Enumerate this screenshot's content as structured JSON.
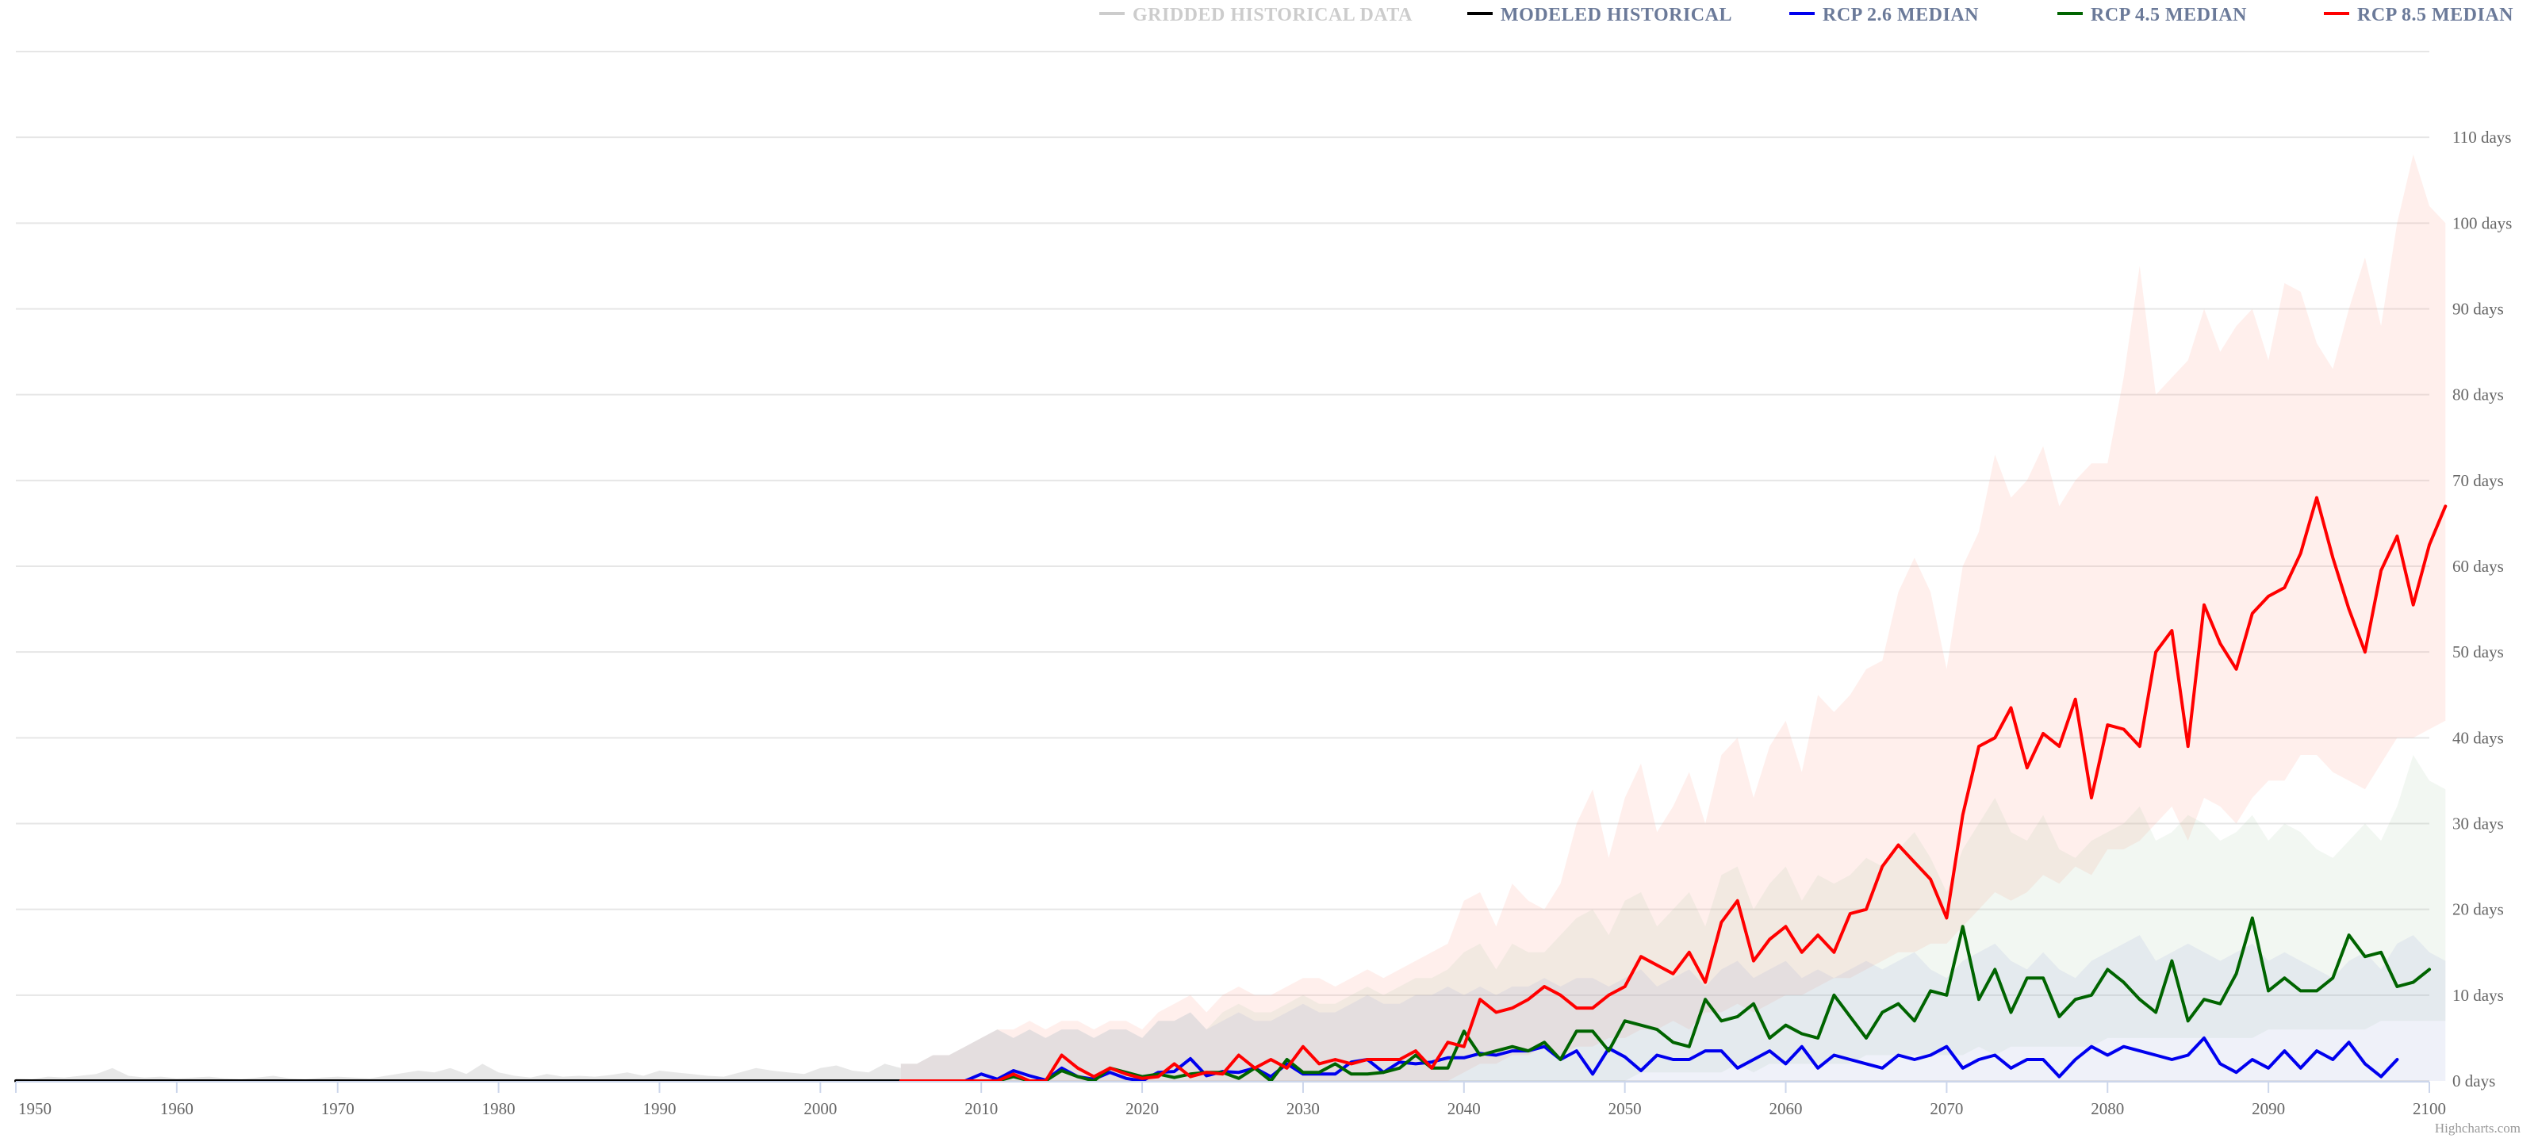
{
  "chart_data": {
    "type": "line",
    "x_range": [
      1950,
      2100
    ],
    "ylim": [
      0,
      120
    ],
    "y_unit": "days",
    "grid": true,
    "legend_position": "top-right",
    "x_ticks": [
      "1950",
      "1960",
      "1970",
      "1980",
      "1990",
      "2000",
      "2010",
      "2020",
      "2030",
      "2040",
      "2050",
      "2060",
      "2070",
      "2080",
      "2090",
      "2100"
    ],
    "y_ticks": [
      "0 days",
      "10 days",
      "20 days",
      "30 days",
      "40 days",
      "50 days",
      "60 days",
      "70 days",
      "80 days",
      "90 days",
      "100 days",
      "110 days"
    ],
    "legend": [
      {
        "name": "GRIDDED HISTORICAL DATA",
        "color": "#cccccc",
        "text_color": "#cccccc",
        "inactive": true
      },
      {
        "name": "MODELED HISTORICAL",
        "color": "#000000",
        "text_color": "#6b7a99"
      },
      {
        "name": "RCP 2.6 MEDIAN",
        "color": "#0000ee",
        "text_color": "#6b7a99"
      },
      {
        "name": "RCP 4.5 MEDIAN",
        "color": "#006400",
        "text_color": "#6b7a99"
      },
      {
        "name": "RCP 8.5 MEDIAN",
        "color": "#ff0000",
        "text_color": "#6b7a99"
      }
    ],
    "series": [
      {
        "name": "MODELED HISTORICAL",
        "color": "#000000",
        "x": [
          1950,
          2005
        ],
        "values": [
          0,
          0
        ]
      },
      {
        "name": "RCP 2.6 MEDIAN",
        "color": "#0000ee",
        "x_start": 2005,
        "values": [
          0,
          0,
          0,
          0,
          0,
          0.8,
          0.2,
          1.2,
          0.6,
          0.1,
          1.5,
          0.5,
          0.2,
          1.0,
          0.3,
          0,
          1.0,
          1.1,
          2.6,
          0.6,
          1.1,
          1.0,
          1.5,
          0.5,
          2.0,
          0.8,
          0.8,
          0.8,
          2.2,
          2.5,
          1.0,
          2.2,
          2.0,
          2.2,
          2.7,
          2.7,
          3.2,
          3.0,
          3.5,
          3.5,
          4.0,
          2.5,
          3.5,
          0.8,
          3.8,
          2.8,
          1.2,
          3.0,
          2.5,
          2.5,
          3.5,
          3.5,
          1.5,
          2.5,
          3.5,
          2.0,
          4.0,
          1.5,
          3.0,
          2.5,
          2.0,
          1.5,
          3.0,
          2.5,
          3.0,
          4.0,
          1.5,
          2.5,
          3.0,
          1.5,
          2.5,
          2.5,
          0.5,
          2.5,
          4.0,
          3.0,
          4.0,
          3.5,
          3.0,
          2.5,
          3.0,
          5.0,
          2.0,
          1.0,
          2.5,
          1.5,
          3.5,
          1.5,
          3.5,
          2.5,
          4.5,
          2.0,
          0.5,
          2.5
        ]
      },
      {
        "name": "RCP 4.5 MEDIAN",
        "color": "#006400",
        "x_start": 2005,
        "values": [
          0,
          0,
          0,
          0,
          0,
          0,
          0,
          0.5,
          0,
          0,
          1.2,
          0.5,
          0,
          1.5,
          1.0,
          0.5,
          0.8,
          0.4,
          0.8,
          1.0,
          1.0,
          0.3,
          1.5,
          0,
          2.5,
          1.0,
          1.0,
          2.0,
          0.8,
          0.8,
          1.0,
          1.5,
          3.0,
          1.5,
          1.5,
          5.8,
          3.0,
          3.5,
          4.0,
          3.5,
          4.5,
          2.5,
          5.8,
          5.8,
          3.5,
          7.0,
          6.5,
          6.0,
          4.5,
          4.0,
          9.5,
          7.0,
          7.5,
          9.0,
          5.0,
          6.5,
          5.5,
          5.0,
          10.0,
          7.5,
          5.0,
          8.0,
          9.0,
          7.0,
          10.5,
          10.0,
          18.0,
          9.5,
          13.0,
          8.0,
          12.0,
          12.0,
          7.5,
          9.5,
          10.0,
          13.0,
          11.5,
          9.5,
          8.0,
          14.0,
          7.0,
          9.5,
          9.0,
          12.5,
          19.0,
          10.5,
          12.0,
          10.5,
          10.5,
          12.0,
          17.0,
          14.5,
          15.0,
          11.0,
          11.5,
          13.0
        ]
      },
      {
        "name": "RCP 8.5 MEDIAN",
        "color": "#ff0000",
        "x_start": 2005,
        "values": [
          0,
          0,
          0,
          0,
          0,
          0,
          0,
          0.8,
          0,
          0,
          3.0,
          1.5,
          0.5,
          1.5,
          0.8,
          0.3,
          0.5,
          2.0,
          0.5,
          1.0,
          0.8,
          3.0,
          1.5,
          2.5,
          1.5,
          4.0,
          2.0,
          2.5,
          2.0,
          2.5,
          2.5,
          2.5,
          3.5,
          1.5,
          4.5,
          4.0,
          9.5,
          8.0,
          8.5,
          9.5,
          11.0,
          10.0,
          8.5,
          8.5,
          10.0,
          11.0,
          14.5,
          13.5,
          12.5,
          15.0,
          11.5,
          18.5,
          21.0,
          14.0,
          16.5,
          18.0,
          15.0,
          17.0,
          15.0,
          19.5,
          20.0,
          25.0,
          27.5,
          25.5,
          23.5,
          19.0,
          31.0,
          39.0,
          40.0,
          43.5,
          36.5,
          40.5,
          39.0,
          44.5,
          33.0,
          41.5,
          41.0,
          39.0,
          50.0,
          52.5,
          39.0,
          55.5,
          51.0,
          48.0,
          54.5,
          56.5,
          57.5,
          61.5,
          68.0,
          61.0,
          55.0,
          50.0,
          59.5,
          63.5,
          55.5,
          62.5,
          67.0
        ]
      }
    ],
    "ranges": [
      {
        "name": "RCP 8.5 range",
        "color": "#ff9e8a",
        "opacity": 0.16,
        "x_start": 2005,
        "low": [
          0,
          0,
          0,
          0,
          0,
          0,
          0,
          0,
          0,
          0,
          0,
          0,
          0,
          0,
          0,
          0,
          0,
          0,
          0,
          0,
          0,
          0,
          0,
          0,
          0,
          0,
          0,
          0,
          0,
          0,
          0,
          0,
          0,
          0,
          0,
          1,
          2,
          2,
          3,
          3,
          4,
          3,
          4,
          4,
          5,
          5,
          6,
          6,
          7,
          6,
          8,
          8,
          9,
          8,
          9,
          10,
          10,
          11,
          12,
          12,
          13,
          14,
          15,
          15,
          16,
          16,
          18,
          20,
          22,
          21,
          22,
          24,
          23,
          25,
          24,
          27,
          27,
          28,
          30,
          32,
          28,
          33,
          32,
          30,
          33,
          35,
          35,
          38,
          38,
          36,
          35,
          34,
          37,
          40,
          40,
          41,
          42
        ],
        "high": [
          2,
          2,
          3,
          3,
          4,
          5,
          6,
          6,
          7,
          6,
          7,
          7,
          6,
          7,
          7,
          6,
          8,
          9,
          10,
          8,
          10,
          11,
          10,
          10,
          11,
          12,
          12,
          11,
          12,
          13,
          12,
          13,
          14,
          15,
          16,
          21,
          22,
          18,
          23,
          21,
          20,
          23,
          30,
          34,
          26,
          33,
          37,
          29,
          32,
          36,
          30,
          38,
          40,
          33,
          39,
          42,
          36,
          45,
          43,
          45,
          48,
          49,
          57,
          61,
          57,
          48,
          60,
          64,
          73,
          68,
          70,
          74,
          67,
          70,
          72,
          72,
          82,
          95,
          80,
          82,
          84,
          90,
          85,
          88,
          90,
          84,
          93,
          92,
          86,
          83,
          90,
          96,
          88,
          100,
          108,
          102,
          100
        ]
      },
      {
        "name": "RCP 4.5 range",
        "color": "#a0c4a0",
        "opacity": 0.14,
        "x_start": 2005,
        "low": [
          0,
          0,
          0,
          0,
          0,
          0,
          0,
          0,
          0,
          0,
          0,
          0,
          0,
          0,
          0,
          0,
          0,
          0,
          0,
          0,
          0,
          0,
          0,
          0,
          0,
          0,
          0,
          0,
          0,
          0,
          0,
          0,
          0,
          0,
          0,
          0,
          0,
          0,
          0,
          0,
          0,
          0,
          0,
          0,
          0,
          0,
          1,
          1,
          1,
          1,
          1,
          1,
          2,
          1,
          2,
          2,
          2,
          2,
          2,
          2,
          3,
          3,
          3,
          3,
          3,
          3,
          3,
          4,
          3,
          4,
          4,
          4,
          4,
          4,
          4,
          5,
          5,
          5,
          5,
          5,
          5,
          5,
          5,
          5,
          5,
          6,
          6,
          6,
          6,
          6,
          6,
          6,
          7,
          7,
          7,
          7,
          7
        ],
        "high": [
          2,
          2,
          3,
          3,
          4,
          5,
          6,
          5,
          6,
          5,
          6,
          6,
          5,
          6,
          6,
          5,
          7,
          7,
          8,
          6,
          8,
          9,
          8,
          8,
          9,
          10,
          9,
          9,
          10,
          11,
          10,
          11,
          12,
          12,
          13,
          15,
          16,
          13,
          16,
          15,
          15,
          17,
          19,
          20,
          17,
          21,
          22,
          18,
          20,
          22,
          18,
          24,
          25,
          20,
          23,
          25,
          21,
          24,
          23,
          24,
          26,
          25,
          27,
          29,
          26,
          22,
          27,
          30,
          33,
          29,
          28,
          31,
          27,
          26,
          28,
          29,
          30,
          32,
          28,
          29,
          31,
          30,
          28,
          29,
          31,
          28,
          30,
          29,
          27,
          26,
          28,
          30,
          28,
          32,
          38,
          35,
          34
        ]
      },
      {
        "name": "RCP 2.6 range",
        "color": "#9ea8d8",
        "opacity": 0.16,
        "x_start": 2005,
        "low": [
          0,
          0,
          0,
          0,
          0,
          0,
          0,
          0,
          0,
          0,
          0,
          0,
          0,
          0,
          0,
          0,
          0,
          0,
          0,
          0,
          0,
          0,
          0,
          0,
          0,
          0,
          0,
          0,
          0,
          0,
          0,
          0,
          0,
          0,
          0,
          0,
          0,
          0,
          0,
          0,
          0,
          0,
          0,
          0,
          0,
          0,
          0,
          0,
          0,
          0,
          0,
          0,
          0,
          0,
          0,
          0,
          0,
          0,
          0,
          0,
          0,
          0,
          0,
          0,
          0,
          0,
          0,
          0,
          0,
          0,
          0,
          0,
          0,
          0,
          0,
          0,
          0,
          0,
          0,
          0,
          0,
          0,
          0,
          0,
          0,
          0,
          0,
          0,
          0,
          0,
          0,
          0,
          0,
          0,
          0,
          0,
          0
        ],
        "high": [
          2,
          2,
          3,
          3,
          4,
          5,
          6,
          5,
          6,
          5,
          6,
          6,
          5,
          6,
          6,
          5,
          7,
          7,
          8,
          6,
          7,
          8,
          7,
          7,
          8,
          9,
          8,
          8,
          9,
          10,
          9,
          9,
          10,
          10,
          11,
          10,
          11,
          10,
          11,
          11,
          12,
          11,
          12,
          12,
          11,
          12,
          13,
          11,
          12,
          13,
          11,
          13,
          14,
          12,
          13,
          14,
          12,
          13,
          12,
          13,
          14,
          13,
          14,
          15,
          13,
          12,
          14,
          15,
          16,
          14,
          13,
          15,
          13,
          12,
          14,
          15,
          16,
          17,
          14,
          15,
          16,
          15,
          14,
          15,
          16,
          14,
          15,
          14,
          13,
          12,
          14,
          15,
          13,
          16,
          17,
          15,
          14
        ]
      },
      {
        "name": "Gridded historical",
        "color": "#bbbbbb",
        "opacity": 0.35,
        "x_start": 1950,
        "low": [
          0,
          0,
          0,
          0,
          0,
          0,
          0,
          0,
          0,
          0,
          0,
          0,
          0,
          0,
          0,
          0,
          0,
          0,
          0,
          0,
          0,
          0,
          0,
          0,
          0,
          0,
          0,
          0,
          0,
          0,
          0,
          0,
          0,
          0,
          0,
          0,
          0,
          0,
          0,
          0,
          0,
          0,
          0,
          0,
          0,
          0,
          0,
          0,
          0,
          0,
          0,
          0,
          0,
          0,
          0,
          0
        ],
        "high": [
          0.3,
          0.2,
          0.5,
          0.4,
          0.6,
          0.8,
          1.5,
          0.6,
          0.4,
          0.5,
          0.3,
          0.4,
          0.5,
          0.3,
          0.2,
          0.4,
          0.6,
          0.3,
          0.2,
          0.4,
          0.5,
          0.4,
          0.3,
          0.6,
          0.9,
          1.2,
          1.0,
          1.5,
          0.8,
          2.0,
          1.0,
          0.6,
          0.4,
          0.8,
          0.5,
          0.6,
          0.5,
          0.7,
          1.0,
          0.6,
          1.2,
          1.0,
          0.8,
          0.6,
          0.5,
          1.0,
          1.5,
          1.2,
          1.0,
          0.8,
          1.5,
          1.8,
          1.2,
          1.0,
          2.0,
          1.5
        ]
      }
    ],
    "credits": "Highcharts.com"
  }
}
